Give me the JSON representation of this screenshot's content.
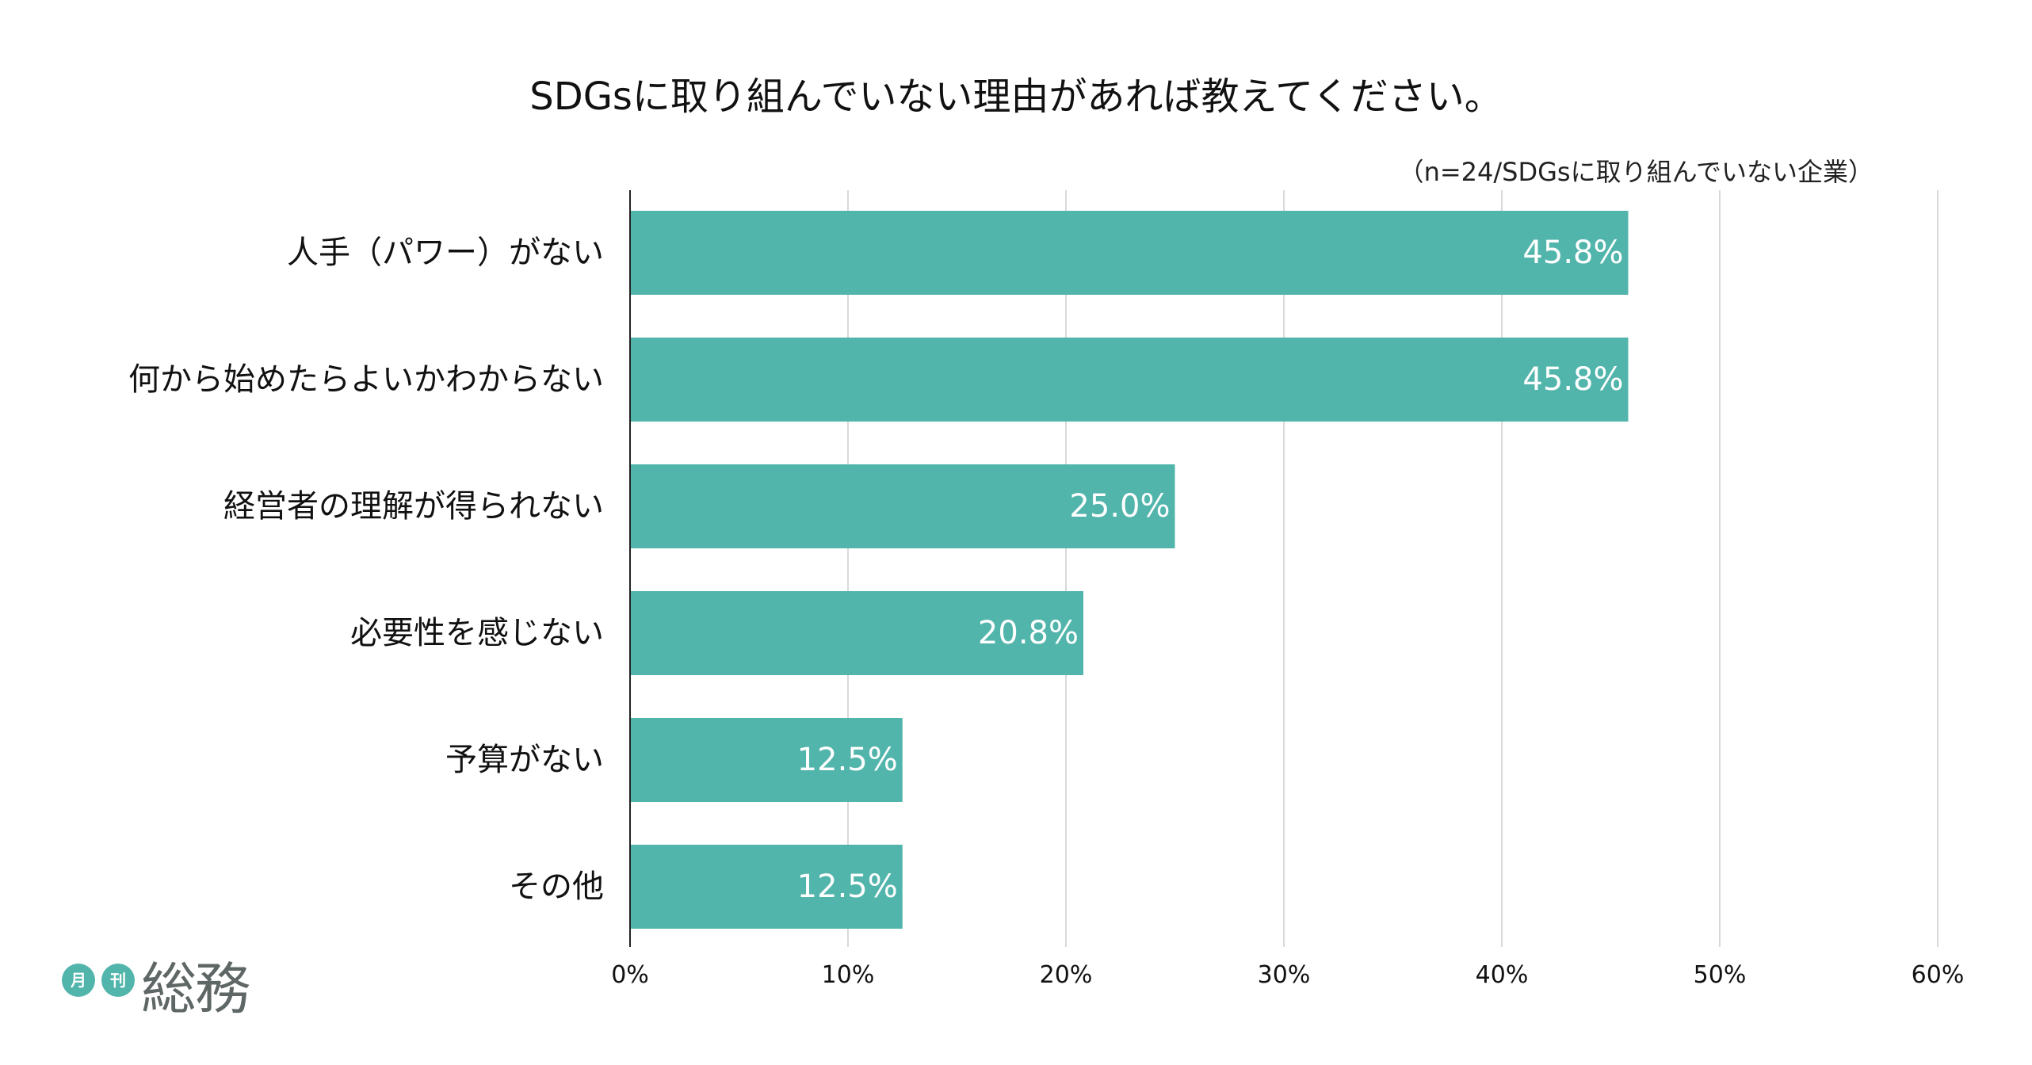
{
  "logo": {
    "small_1": "月",
    "small_2": "刊",
    "brand": "総務"
  },
  "chart_data": {
    "type": "bar",
    "orientation": "horizontal",
    "title": "SDGsに取り組んでいない理由があれば教えてください。",
    "note": "（n=24/SDGsに取り組んでいない企業）",
    "categories": [
      "人手（パワー）がない",
      "何から始めたらよいかわからない",
      "経営者の理解が得られない",
      "必要性を感じない",
      "予算がない",
      "その他"
    ],
    "values": [
      45.8,
      45.8,
      25.0,
      20.8,
      12.5,
      12.5
    ],
    "value_labels": [
      "45.8%",
      "45.8%",
      "25.0%",
      "20.8%",
      "12.5%",
      "12.5%"
    ],
    "xlim": [
      0,
      60
    ],
    "x_ticks": [
      0,
      10,
      20,
      30,
      40,
      50,
      60
    ],
    "x_tick_labels": [
      "0%",
      "10%",
      "20%",
      "30%",
      "40%",
      "50%",
      "60%"
    ],
    "grid": "vertical",
    "bar_color": "#52b5ac",
    "label_color": "#ffffff",
    "grid_color": "#d9d9d9",
    "axis_color": "#222222"
  }
}
